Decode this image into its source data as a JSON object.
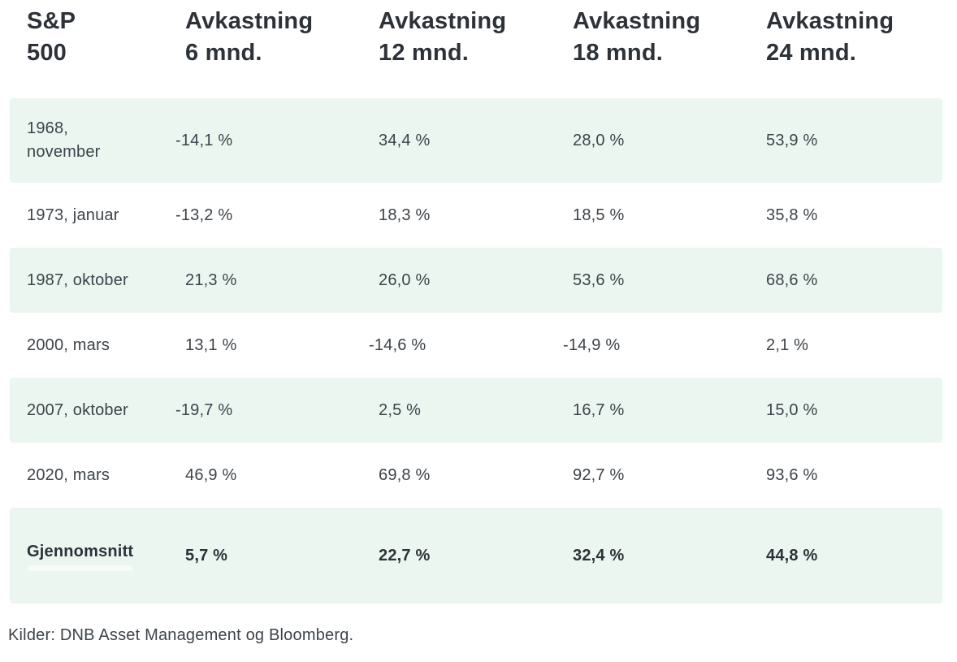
{
  "table": {
    "columns": [
      "S&P\n500",
      "Avkastning\n6 mnd.",
      "Avkastning\n12 mnd.",
      "Avkastning\n18 mnd.",
      "Avkastning\n24 mnd."
    ],
    "rows": [
      {
        "label": "1968,\nnovember",
        "values": [
          "-14,1 %",
          "34,4 %",
          "28,0 %",
          "53,9 %"
        ]
      },
      {
        "label": "1973, januar",
        "values": [
          "-13,2 %",
          "18,3 %",
          "18,5 %",
          "35,8 %"
        ]
      },
      {
        "label": "1987, oktober",
        "values": [
          "21,3 %",
          "26,0 %",
          "53,6 %",
          "68,6 %"
        ]
      },
      {
        "label": "2000, mars",
        "values": [
          "13,1 %",
          "-14,6 %",
          "-14,9 %",
          "2,1 %"
        ]
      },
      {
        "label": "2007, oktober",
        "values": [
          "-19,7 %",
          "2,5 %",
          "16,7 %",
          "15,0 %"
        ]
      },
      {
        "label": "2020, mars",
        "values": [
          "46,9 %",
          "69,8 %",
          "92,7 %",
          "93,6 %"
        ]
      },
      {
        "label": "Gjennomsnitt",
        "values": [
          "5,7 %",
          "22,7 %",
          "32,4 %",
          "44,8 %"
        ]
      }
    ],
    "source": "Kilder: DNB Asset Management og Bloomberg."
  },
  "colors": {
    "row_tint": "#ecf6f1",
    "heading_text": "#2d3238",
    "body_text": "#3d4349",
    "background": "#ffffff"
  },
  "chart_data": {
    "type": "table",
    "title": "S&P 500",
    "columns": [
      "S&P 500",
      "Avkastning 6 mnd.",
      "Avkastning 12 mnd.",
      "Avkastning 18 mnd.",
      "Avkastning 24 mnd."
    ],
    "unit": "%",
    "rows": [
      {
        "label": "1968, november",
        "values": [
          -14.1,
          34.4,
          28.0,
          53.9
        ]
      },
      {
        "label": "1973, januar",
        "values": [
          -13.2,
          18.3,
          18.5,
          35.8
        ]
      },
      {
        "label": "1987, oktober",
        "values": [
          21.3,
          26.0,
          53.6,
          68.6
        ]
      },
      {
        "label": "2000, mars",
        "values": [
          13.1,
          -14.6,
          -14.9,
          2.1
        ]
      },
      {
        "label": "2007, oktober",
        "values": [
          -19.7,
          2.5,
          16.7,
          15.0
        ]
      },
      {
        "label": "2020, mars",
        "values": [
          46.9,
          69.8,
          92.7,
          93.6
        ]
      },
      {
        "label": "Gjennomsnitt",
        "values": [
          5.7,
          22.7,
          32.4,
          44.8
        ]
      }
    ],
    "source": "Kilder: DNB Asset Management og Bloomberg.",
    "layout_hints": {
      "striped_rows": "odd rows tinted mint",
      "average_row_bold": true
    }
  }
}
